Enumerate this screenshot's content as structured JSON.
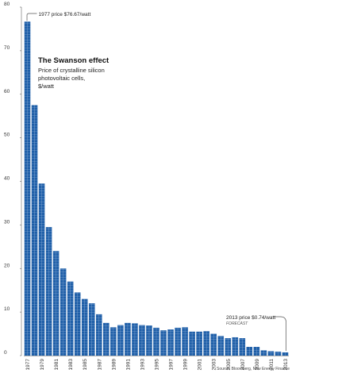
{
  "chart_data": {
    "type": "bar",
    "title": "The Swanson effect",
    "subtitle_lines": [
      "Price of crystalline silicon",
      "photovoltaic cells,",
      "$/watt"
    ],
    "ylim": [
      0,
      80
    ],
    "y_ticks": [
      "0",
      "10",
      "20",
      "30",
      "40",
      "50",
      "60",
      "70",
      "80"
    ],
    "categories": [
      "1977",
      "1978",
      "1979",
      "1980",
      "1981",
      "1982",
      "1983",
      "1984",
      "1985",
      "1986",
      "1987",
      "1988",
      "1989",
      "1990",
      "1991",
      "1992",
      "1993",
      "1994",
      "1995",
      "1996",
      "1997",
      "1998",
      "1999",
      "2000",
      "2001",
      "2002",
      "2003",
      "2004",
      "2005",
      "2006",
      "2007",
      "2008",
      "2009",
      "2010",
      "2011",
      "2012",
      "2013"
    ],
    "x_tick_labels": [
      "1977",
      "1979",
      "1981",
      "1983",
      "1985",
      "1987",
      "1989",
      "1991",
      "1993",
      "1995",
      "1997",
      "1999",
      "2001",
      "2003",
      "2005",
      "2007",
      "2009",
      "2011",
      "2013"
    ],
    "values": [
      76.67,
      57.5,
      39.5,
      29.5,
      24.0,
      20.0,
      17.0,
      14.5,
      13.0,
      12.0,
      9.5,
      7.5,
      6.5,
      7.0,
      7.5,
      7.4,
      7.0,
      6.9,
      6.4,
      5.8,
      6.0,
      6.4,
      6.5,
      5.5,
      5.5,
      5.6,
      5.0,
      4.5,
      4.0,
      4.2,
      4.0,
      2.0,
      2.0,
      1.2,
      1.0,
      0.9,
      0.74
    ],
    "annotations": [
      {
        "category": "1977",
        "text": "1977 price $76.67/watt"
      },
      {
        "category": "2013",
        "text": "2013 price $0.74/watt",
        "note": "FORECAST"
      }
    ],
    "source": "Source: Bloomberg, New Energy Finance",
    "bar_color": "#1f5fa8",
    "grid_line_color": "#9cb9dd",
    "grid": false
  }
}
